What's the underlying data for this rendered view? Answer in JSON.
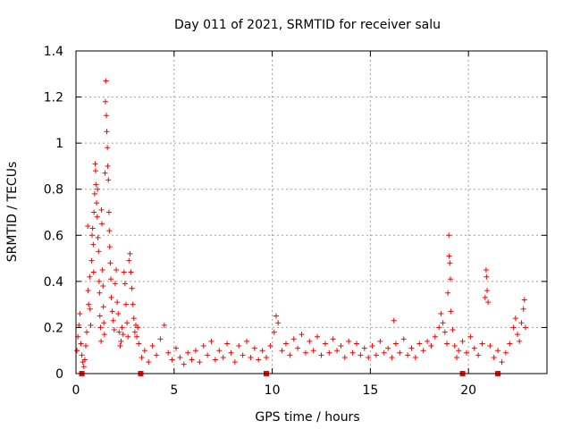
{
  "chart_data": {
    "type": "scatter",
    "title": "Day 011 of 2021, SRMTID for receiver salu",
    "xlabel": "GPS time / hours",
    "ylabel": "SRMTID / TECUs",
    "xlim": [
      0,
      24
    ],
    "ylim": [
      0,
      1.4
    ],
    "xticks": [
      0,
      5,
      10,
      15,
      20
    ],
    "yticks": [
      0,
      0.2,
      0.4,
      0.6,
      0.8,
      1,
      1.2,
      1.4
    ],
    "xtick_labels": [
      "0",
      "5",
      "10",
      "15",
      "20"
    ],
    "ytick_labels": [
      "0",
      "0.2",
      "0.4",
      "0.6",
      "0.8",
      "1",
      "1.2",
      "1.4"
    ],
    "grid": true,
    "marker": "+",
    "color": "#ff0000",
    "series": [
      {
        "name": "SRMTID",
        "points": [
          [
            0.05,
            0.1
          ],
          [
            0.1,
            0.16
          ],
          [
            0.15,
            0.21
          ],
          [
            0.2,
            0.26
          ],
          [
            0.25,
            0.13
          ],
          [
            0.3,
            0.08
          ],
          [
            0.35,
            0.05
          ],
          [
            0.4,
            0.03
          ],
          [
            0.45,
            0.06
          ],
          [
            0.5,
            0.12
          ],
          [
            0.55,
            0.18
          ],
          [
            0.6,
            0.64
          ],
          [
            0.62,
            0.36
          ],
          [
            0.65,
            0.3
          ],
          [
            0.7,
            0.42
          ],
          [
            0.72,
            0.28
          ],
          [
            0.75,
            0.21
          ],
          [
            0.8,
            0.49
          ],
          [
            0.82,
            0.6
          ],
          [
            0.85,
            0.63
          ],
          [
            0.88,
            0.56
          ],
          [
            0.9,
            0.44
          ],
          [
            0.92,
            0.7
          ],
          [
            0.95,
            0.78
          ],
          [
            0.98,
            0.91
          ],
          [
            1.0,
            0.88
          ],
          [
            1.02,
            0.82
          ],
          [
            1.05,
            0.74
          ],
          [
            1.08,
            0.68
          ],
          [
            1.1,
            0.8
          ],
          [
            1.12,
            0.59
          ],
          [
            1.15,
            0.53
          ],
          [
            1.18,
            0.4
          ],
          [
            1.2,
            0.35
          ],
          [
            1.22,
            0.25
          ],
          [
            1.25,
            0.2
          ],
          [
            1.28,
            0.14
          ],
          [
            1.3,
            0.71
          ],
          [
            1.32,
            0.65
          ],
          [
            1.35,
            0.45
          ],
          [
            1.38,
            0.38
          ],
          [
            1.4,
            0.29
          ],
          [
            1.42,
            0.22
          ],
          [
            1.45,
            0.17
          ],
          [
            1.48,
            0.87
          ],
          [
            1.5,
            1.18
          ],
          [
            1.52,
            1.27
          ],
          [
            1.55,
            1.12
          ],
          [
            1.57,
            1.05
          ],
          [
            1.6,
            0.98
          ],
          [
            1.62,
            0.9
          ],
          [
            1.65,
            0.84
          ],
          [
            1.68,
            0.7
          ],
          [
            1.7,
            0.62
          ],
          [
            1.72,
            0.55
          ],
          [
            1.75,
            0.48
          ],
          [
            1.78,
            0.41
          ],
          [
            1.8,
            0.33
          ],
          [
            1.85,
            0.27
          ],
          [
            1.9,
            0.23
          ],
          [
            1.95,
            0.19
          ],
          [
            2.0,
            0.39
          ],
          [
            2.05,
            0.45
          ],
          [
            2.1,
            0.31
          ],
          [
            2.15,
            0.26
          ],
          [
            2.2,
            0.18
          ],
          [
            2.25,
            0.12
          ],
          [
            2.3,
            0.14
          ],
          [
            2.35,
            0.2
          ],
          [
            2.4,
            0.17
          ],
          [
            2.45,
            0.44
          ],
          [
            2.5,
            0.39
          ],
          [
            2.55,
            0.3
          ],
          [
            2.6,
            0.22
          ],
          [
            2.65,
            0.16
          ],
          [
            2.7,
            0.49
          ],
          [
            2.75,
            0.52
          ],
          [
            2.8,
            0.44
          ],
          [
            2.85,
            0.37
          ],
          [
            2.9,
            0.3
          ],
          [
            2.95,
            0.24
          ],
          [
            3.0,
            0.18
          ],
          [
            3.05,
            0.21
          ],
          [
            3.1,
            0.16
          ],
          [
            3.15,
            0.2
          ],
          [
            3.2,
            0.13
          ],
          [
            3.35,
            0.07
          ],
          [
            3.5,
            0.1
          ],
          [
            3.7,
            0.05
          ],
          [
            3.9,
            0.12
          ],
          [
            4.1,
            0.08
          ],
          [
            4.3,
            0.15
          ],
          [
            4.5,
            0.21
          ],
          [
            4.7,
            0.09
          ],
          [
            4.9,
            0.06
          ],
          [
            5.1,
            0.11
          ],
          [
            5.3,
            0.07
          ],
          [
            5.5,
            0.04
          ],
          [
            5.7,
            0.09
          ],
          [
            5.9,
            0.06
          ],
          [
            6.1,
            0.1
          ],
          [
            6.3,
            0.05
          ],
          [
            6.5,
            0.12
          ],
          [
            6.7,
            0.08
          ],
          [
            6.9,
            0.14
          ],
          [
            7.1,
            0.06
          ],
          [
            7.3,
            0.1
          ],
          [
            7.5,
            0.07
          ],
          [
            7.7,
            0.13
          ],
          [
            7.9,
            0.09
          ],
          [
            8.1,
            0.05
          ],
          [
            8.3,
            0.12
          ],
          [
            8.5,
            0.08
          ],
          [
            8.7,
            0.14
          ],
          [
            8.9,
            0.07
          ],
          [
            9.1,
            0.11
          ],
          [
            9.3,
            0.06
          ],
          [
            9.5,
            0.1
          ],
          [
            9.7,
            0.07
          ],
          [
            9.9,
            0.12
          ],
          [
            10.1,
            0.18
          ],
          [
            10.2,
            0.25
          ],
          [
            10.3,
            0.22
          ],
          [
            10.5,
            0.1
          ],
          [
            10.7,
            0.13
          ],
          [
            10.9,
            0.08
          ],
          [
            11.1,
            0.15
          ],
          [
            11.3,
            0.11
          ],
          [
            11.5,
            0.17
          ],
          [
            11.7,
            0.09
          ],
          [
            11.9,
            0.14
          ],
          [
            12.1,
            0.1
          ],
          [
            12.3,
            0.16
          ],
          [
            12.5,
            0.08
          ],
          [
            12.7,
            0.13
          ],
          [
            12.9,
            0.09
          ],
          [
            13.1,
            0.15
          ],
          [
            13.3,
            0.1
          ],
          [
            13.5,
            0.12
          ],
          [
            13.7,
            0.07
          ],
          [
            13.9,
            0.14
          ],
          [
            14.1,
            0.09
          ],
          [
            14.3,
            0.13
          ],
          [
            14.5,
            0.08
          ],
          [
            14.7,
            0.11
          ],
          [
            14.9,
            0.07
          ],
          [
            15.1,
            0.12
          ],
          [
            15.3,
            0.08
          ],
          [
            15.5,
            0.14
          ],
          [
            15.7,
            0.09
          ],
          [
            15.9,
            0.11
          ],
          [
            16.1,
            0.07
          ],
          [
            16.2,
            0.23
          ],
          [
            16.3,
            0.13
          ],
          [
            16.5,
            0.09
          ],
          [
            16.7,
            0.15
          ],
          [
            16.9,
            0.08
          ],
          [
            17.1,
            0.11
          ],
          [
            17.3,
            0.07
          ],
          [
            17.5,
            0.13
          ],
          [
            17.7,
            0.1
          ],
          [
            17.9,
            0.14
          ],
          [
            18.1,
            0.12
          ],
          [
            18.3,
            0.16
          ],
          [
            18.5,
            0.2
          ],
          [
            18.6,
            0.26
          ],
          [
            18.7,
            0.22
          ],
          [
            18.8,
            0.18
          ],
          [
            18.9,
            0.13
          ],
          [
            18.95,
            0.35
          ],
          [
            19.0,
            0.6
          ],
          [
            19.02,
            0.51
          ],
          [
            19.05,
            0.48
          ],
          [
            19.08,
            0.41
          ],
          [
            19.1,
            0.27
          ],
          [
            19.2,
            0.19
          ],
          [
            19.3,
            0.12
          ],
          [
            19.4,
            0.07
          ],
          [
            19.5,
            0.1
          ],
          [
            19.7,
            0.14
          ],
          [
            19.9,
            0.09
          ],
          [
            20.1,
            0.16
          ],
          [
            20.3,
            0.11
          ],
          [
            20.5,
            0.08
          ],
          [
            20.7,
            0.13
          ],
          [
            20.85,
            0.33
          ],
          [
            20.9,
            0.45
          ],
          [
            20.92,
            0.42
          ],
          [
            20.95,
            0.36
          ],
          [
            21.0,
            0.31
          ],
          [
            21.1,
            0.12
          ],
          [
            21.3,
            0.07
          ],
          [
            21.5,
            0.1
          ],
          [
            21.7,
            0.05
          ],
          [
            21.9,
            0.09
          ],
          [
            22.1,
            0.13
          ],
          [
            22.3,
            0.2
          ],
          [
            22.4,
            0.24
          ],
          [
            22.5,
            0.17
          ],
          [
            22.6,
            0.14
          ],
          [
            22.7,
            0.22
          ],
          [
            22.8,
            0.28
          ],
          [
            22.85,
            0.32
          ],
          [
            22.9,
            0.2
          ]
        ]
      }
    ],
    "bottom_markers_x": [
      0.3,
      3.3,
      9.7,
      19.7,
      21.5
    ]
  }
}
